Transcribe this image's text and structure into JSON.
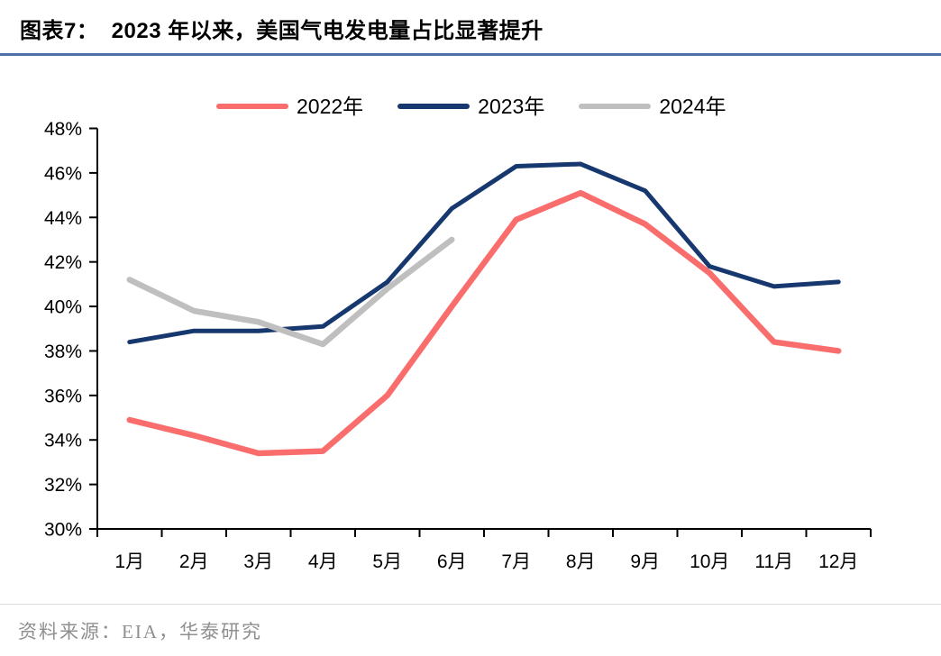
{
  "header": {
    "title": "图表7：  2023 年以来，美国气电发电量占比显著提升"
  },
  "footer": {
    "source": "资料来源：EIA，华泰研究"
  },
  "chart_data": {
    "type": "line",
    "title": "2023 年以来，美国气电发电量占比显著提升",
    "categories": [
      "1月",
      "2月",
      "3月",
      "4月",
      "5月",
      "6月",
      "7月",
      "8月",
      "9月",
      "10月",
      "11月",
      "12月"
    ],
    "series": [
      {
        "name": "2022年",
        "color": "#FA6D6D",
        "stroke_width": 6.5,
        "values": [
          34.9,
          34.2,
          33.4,
          33.5,
          36.0,
          40.0,
          43.9,
          45.1,
          43.7,
          41.5,
          38.4,
          38.0
        ]
      },
      {
        "name": "2023年",
        "color": "#17386E",
        "stroke_width": 5,
        "values": [
          38.4,
          38.9,
          38.9,
          39.1,
          41.1,
          44.4,
          46.3,
          46.4,
          45.2,
          41.8,
          40.9,
          41.1
        ]
      },
      {
        "name": "2024年",
        "color": "#BFBFBF",
        "stroke_width": 6.5,
        "values": [
          41.2,
          39.8,
          39.3,
          38.3,
          40.8,
          43.0
        ]
      }
    ],
    "ylim": [
      30,
      48
    ],
    "y_tick_step": 2,
    "y_tick_labels": [
      "30%",
      "32%",
      "34%",
      "36%",
      "38%",
      "40%",
      "42%",
      "44%",
      "46%",
      "48%"
    ],
    "ylabel": "",
    "xlabel": "",
    "grid": false,
    "legend_position": "top",
    "axis_color": "#000000"
  }
}
